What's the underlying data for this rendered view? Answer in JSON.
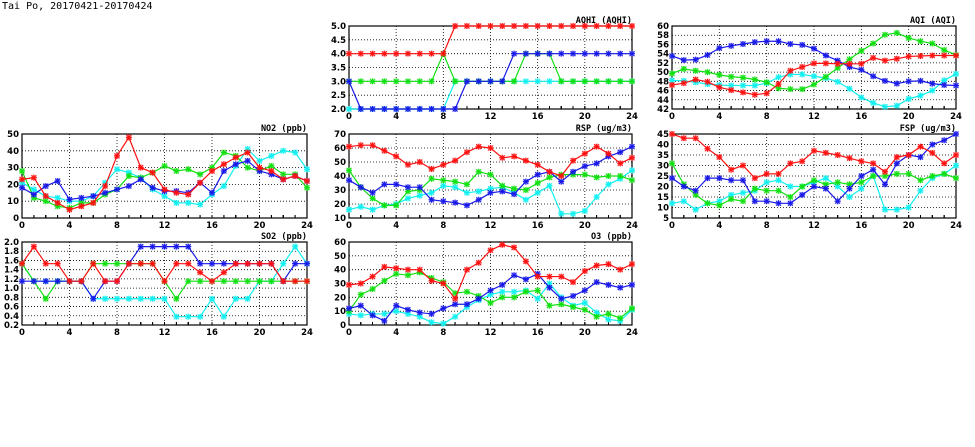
{
  "page_title": "Tai Po, 20170421-20170424",
  "colors": {
    "red": "#ff1010",
    "blue": "#1818e8",
    "green": "#10e010",
    "cyan": "#10f0f0"
  },
  "chart_data": [
    {
      "id": "no2",
      "type": "line",
      "title": "NO2 (ppb)",
      "xlabel": "",
      "ylabel": "",
      "xlim": [
        0,
        24
      ],
      "xticks": [
        "0",
        "4",
        "8",
        "12",
        "16",
        "20",
        "24"
      ],
      "ylim": [
        0,
        50
      ],
      "yticks": [
        "0",
        "10",
        "20",
        "30",
        "40",
        "50"
      ],
      "grid": true,
      "x": [
        0,
        1,
        2,
        3,
        4,
        5,
        6,
        7,
        8,
        9,
        10,
        11,
        12,
        13,
        14,
        15,
        16,
        17,
        18,
        19,
        20,
        21,
        22,
        23,
        24
      ],
      "series": [
        {
          "color": "cyan",
          "values": [
            21,
            17,
            13,
            12,
            10,
            10,
            13,
            21,
            29,
            27,
            24,
            17,
            13,
            9,
            9,
            8,
            14,
            19,
            31,
            41,
            34,
            37,
            40,
            39,
            29
          ]
        },
        {
          "color": "green",
          "values": [
            28,
            12,
            10,
            7,
            6,
            9,
            9,
            14,
            17,
            25,
            24,
            27,
            31,
            28,
            29,
            26,
            30,
            39,
            37,
            30,
            28,
            31,
            26,
            26,
            18
          ]
        },
        {
          "color": "blue",
          "values": [
            18,
            14,
            19,
            22,
            11,
            12,
            13,
            15,
            17,
            19,
            23,
            18,
            16,
            16,
            15,
            21,
            15,
            28,
            32,
            34,
            28,
            26,
            23,
            25,
            22
          ]
        },
        {
          "color": "red",
          "values": [
            23,
            24,
            13,
            9,
            5,
            7,
            9,
            19,
            37,
            48,
            30,
            27,
            17,
            15,
            14,
            21,
            28,
            32,
            36,
            39,
            30,
            28,
            23,
            25,
            22
          ]
        }
      ]
    },
    {
      "id": "so2",
      "type": "line",
      "title": "SO2 (ppb)",
      "xlabel": "",
      "ylabel": "",
      "xlim": [
        0,
        24
      ],
      "xticks": [
        "0",
        "4",
        "8",
        "12",
        "16",
        "20",
        "24"
      ],
      "ylim": [
        0.2,
        2.0
      ],
      "yticks": [
        "0.2",
        "0.4",
        "0.6",
        "0.8",
        "1.0",
        "1.2",
        "1.4",
        "1.6",
        "1.8",
        "2.0"
      ],
      "grid": true,
      "x": [
        0,
        1,
        2,
        3,
        4,
        5,
        6,
        7,
        8,
        9,
        10,
        11,
        12,
        13,
        14,
        15,
        16,
        17,
        18,
        19,
        20,
        21,
        22,
        23,
        24
      ],
      "series": [
        {
          "color": "cyan",
          "values": [
            1.53,
            1.15,
            1.15,
            1.15,
            1.15,
            1.15,
            0.77,
            0.77,
            0.77,
            0.77,
            0.77,
            0.77,
            0.77,
            0.38,
            0.38,
            0.38,
            0.77,
            0.38,
            0.77,
            0.77,
            1.15,
            1.15,
            1.53,
            1.9,
            1.53
          ]
        },
        {
          "color": "green",
          "values": [
            1.53,
            1.15,
            0.77,
            1.15,
            1.15,
            1.15,
            1.53,
            1.53,
            1.53,
            1.53,
            1.53,
            1.53,
            1.15,
            0.77,
            1.15,
            1.15,
            1.15,
            1.15,
            1.15,
            1.15,
            1.15,
            1.15,
            1.15,
            1.15,
            1.15
          ]
        },
        {
          "color": "blue",
          "values": [
            1.15,
            1.15,
            1.15,
            1.15,
            1.15,
            1.15,
            0.77,
            1.15,
            1.15,
            1.53,
            1.9,
            1.9,
            1.9,
            1.9,
            1.9,
            1.53,
            1.53,
            1.53,
            1.53,
            1.53,
            1.53,
            1.53,
            1.15,
            1.53,
            1.53
          ]
        },
        {
          "color": "red",
          "values": [
            1.53,
            1.9,
            1.53,
            1.53,
            1.15,
            1.15,
            1.53,
            1.15,
            1.15,
            1.53,
            1.53,
            1.53,
            1.15,
            1.53,
            1.53,
            1.34,
            1.15,
            1.34,
            1.53,
            1.53,
            1.53,
            1.53,
            1.15,
            1.15,
            1.15
          ]
        }
      ]
    },
    {
      "id": "aqhi",
      "type": "line",
      "title": "AQHI (AQHI)",
      "xlabel": "",
      "ylabel": "",
      "xlim": [
        0,
        24
      ],
      "xticks": [
        "0",
        "4",
        "8",
        "12",
        "16",
        "20",
        "24"
      ],
      "ylim": [
        2.0,
        5.0
      ],
      "yticks": [
        "2.0",
        "2.5",
        "3.0",
        "3.5",
        "4.0",
        "4.5",
        "5.0"
      ],
      "grid": true,
      "x": [
        0,
        1,
        2,
        3,
        4,
        5,
        6,
        7,
        8,
        9,
        10,
        11,
        12,
        13,
        14,
        15,
        16,
        17,
        18,
        19,
        20,
        21,
        22,
        23,
        24
      ],
      "series": [
        {
          "color": "cyan",
          "values": [
            2,
            2,
            2,
            2,
            2,
            2,
            2,
            2,
            2,
            3,
            3,
            3,
            3,
            3,
            3,
            3,
            3,
            3,
            3,
            3,
            3,
            3,
            3,
            3,
            3
          ]
        },
        {
          "color": "green",
          "values": [
            3,
            3,
            3,
            3,
            3,
            3,
            3,
            3,
            4,
            3,
            3,
            3,
            3,
            3,
            3,
            4,
            4,
            4,
            3,
            3,
            3,
            3,
            3,
            3,
            3
          ]
        },
        {
          "color": "blue",
          "values": [
            3,
            2,
            2,
            2,
            2,
            2,
            2,
            2,
            2,
            2,
            3,
            3,
            3,
            3,
            4,
            4,
            4,
            4,
            4,
            4,
            4,
            4,
            4,
            4,
            4
          ]
        },
        {
          "color": "red",
          "values": [
            4,
            4,
            4,
            4,
            4,
            4,
            4,
            4,
            4,
            5,
            5,
            5,
            5,
            5,
            5,
            5,
            5,
            5,
            5,
            5,
            5,
            5,
            5,
            5,
            5
          ]
        }
      ]
    },
    {
      "id": "rsp",
      "type": "line",
      "title": "RSP (ug/m3)",
      "xlabel": "",
      "ylabel": "",
      "xlim": [
        0,
        24
      ],
      "xticks": [
        "0",
        "4",
        "8",
        "12",
        "16",
        "20",
        "24"
      ],
      "ylim": [
        10,
        70
      ],
      "yticks": [
        "10",
        "20",
        "30",
        "40",
        "50",
        "60",
        "70"
      ],
      "grid": true,
      "x": [
        0,
        1,
        2,
        3,
        4,
        5,
        6,
        7,
        8,
        9,
        10,
        11,
        12,
        13,
        14,
        15,
        16,
        17,
        18,
        19,
        20,
        21,
        22,
        23,
        24
      ],
      "series": [
        {
          "color": "cyan",
          "values": [
            16,
            18,
            16,
            19,
            20,
            24,
            26,
            28,
            33,
            32,
            28,
            29,
            31,
            32,
            28,
            23,
            28,
            33,
            13,
            13,
            15,
            25,
            34,
            38,
            44
          ]
        },
        {
          "color": "green",
          "values": [
            44,
            32,
            24,
            19,
            19,
            29,
            30,
            38,
            37,
            36,
            34,
            43,
            41,
            33,
            31,
            30,
            35,
            39,
            41,
            41,
            41,
            39,
            40,
            40,
            37
          ]
        },
        {
          "color": "blue",
          "values": [
            37,
            32,
            28,
            34,
            34,
            32,
            32,
            23,
            22,
            21,
            19,
            23,
            28,
            29,
            27,
            36,
            41,
            43,
            36,
            43,
            47,
            49,
            54,
            57,
            61
          ]
        },
        {
          "color": "red",
          "values": [
            61,
            62,
            62,
            58,
            54,
            48,
            50,
            45,
            48,
            51,
            57,
            61,
            60,
            53,
            54,
            51,
            48,
            43,
            40,
            51,
            56,
            61,
            56,
            49,
            53
          ]
        }
      ]
    },
    {
      "id": "o3",
      "type": "line",
      "title": "O3 (ppb)",
      "xlabel": "",
      "ylabel": "",
      "xlim": [
        0,
        24
      ],
      "xticks": [
        "0",
        "4",
        "8",
        "12",
        "16",
        "20",
        "24"
      ],
      "ylim": [
        0,
        60
      ],
      "yticks": [
        "0",
        "10",
        "20",
        "30",
        "40",
        "50",
        "60"
      ],
      "grid": true,
      "x": [
        0,
        1,
        2,
        3,
        4,
        5,
        6,
        7,
        8,
        9,
        10,
        11,
        12,
        13,
        14,
        15,
        16,
        17,
        18,
        19,
        20,
        21,
        22,
        23,
        24
      ],
      "series": [
        {
          "color": "cyan",
          "values": [
            8,
            7,
            8,
            8,
            10,
            8,
            6,
            2,
            1,
            6,
            13,
            18,
            22,
            24,
            24,
            25,
            19,
            30,
            20,
            14,
            16,
            9,
            4,
            3,
            11
          ]
        },
        {
          "color": "green",
          "values": [
            10,
            22,
            26,
            32,
            37,
            36,
            38,
            34,
            31,
            23,
            24,
            21,
            16,
            20,
            20,
            24,
            25,
            14,
            15,
            13,
            11,
            6,
            8,
            5,
            12
          ]
        },
        {
          "color": "blue",
          "values": [
            12,
            14,
            7,
            3,
            14,
            11,
            9,
            8,
            12,
            15,
            15,
            19,
            25,
            29,
            36,
            33,
            37,
            27,
            19,
            21,
            25,
            31,
            29,
            27,
            29
          ]
        },
        {
          "color": "red",
          "values": [
            29,
            30,
            35,
            42,
            41,
            40,
            40,
            32,
            30,
            19,
            40,
            45,
            54,
            58,
            56,
            46,
            35,
            35,
            35,
            31,
            39,
            43,
            44,
            40,
            44
          ]
        }
      ]
    },
    {
      "id": "aqi",
      "type": "line",
      "title": "AQI (AQI)",
      "xlabel": "",
      "ylabel": "",
      "xlim": [
        0,
        24
      ],
      "xticks": [
        "0",
        "4",
        "8",
        "12",
        "16",
        "20",
        "24"
      ],
      "ylim": [
        42,
        60
      ],
      "yticks": [
        "42",
        "44",
        "46",
        "48",
        "50",
        "52",
        "54",
        "56",
        "58",
        "60"
      ],
      "grid": true,
      "x": [
        0,
        1,
        2,
        3,
        4,
        5,
        6,
        7,
        8,
        9,
        10,
        11,
        12,
        13,
        14,
        15,
        16,
        17,
        18,
        19,
        20,
        21,
        22,
        23,
        24
      ],
      "series": [
        {
          "color": "cyan",
          "values": [
            48.2,
            48.1,
            47.8,
            47.4,
            47.2,
            47.1,
            47.1,
            47.1,
            47.6,
            48.9,
            49.5,
            49.5,
            49.1,
            48.7,
            47.9,
            46.4,
            44.5,
            43.3,
            42.5,
            42.7,
            44.2,
            44.9,
            46,
            48.2,
            49.6
          ]
        },
        {
          "color": "green",
          "values": [
            49.7,
            50.7,
            50.3,
            50,
            49.4,
            49,
            48.8,
            48.4,
            47.8,
            46.5,
            46.3,
            46.3,
            47.3,
            49,
            50.9,
            52.8,
            54.6,
            56.2,
            58.1,
            58.5,
            57.4,
            56.7,
            56.2,
            54.8,
            53.7
          ]
        },
        {
          "color": "blue",
          "values": [
            53.5,
            52.6,
            52.7,
            53.7,
            55.2,
            55.7,
            56.1,
            56.5,
            56.7,
            56.7,
            56.1,
            55.9,
            55.1,
            53.6,
            52.5,
            51.1,
            50.5,
            49.1,
            48.1,
            47.5,
            48,
            48.1,
            47.5,
            47.2,
            47.1
          ]
        },
        {
          "color": "red",
          "values": [
            47.2,
            47.6,
            48.4,
            47.9,
            46.7,
            46.1,
            45.6,
            45.1,
            45.4,
            47.4,
            50.3,
            51.1,
            51.9,
            51.9,
            51.8,
            51.8,
            51.8,
            53.1,
            52.5,
            52.9,
            53.4,
            53.5,
            53.6,
            53.6,
            53.6
          ]
        }
      ]
    },
    {
      "id": "fsp",
      "type": "line",
      "title": "FSP (ug/m3)",
      "xlabel": "",
      "ylabel": "",
      "xlim": [
        0,
        24
      ],
      "xticks": [
        "0",
        "4",
        "8",
        "12",
        "16",
        "20",
        "24"
      ],
      "ylim": [
        5,
        45
      ],
      "yticks": [
        "5",
        "10",
        "15",
        "20",
        "25",
        "30",
        "35",
        "40",
        "45"
      ],
      "grid": true,
      "x": [
        0,
        1,
        2,
        3,
        4,
        5,
        6,
        7,
        8,
        9,
        10,
        11,
        12,
        13,
        14,
        15,
        16,
        17,
        18,
        19,
        20,
        21,
        22,
        23,
        24
      ],
      "series": [
        {
          "color": "cyan",
          "values": [
            12,
            13,
            9,
            12,
            13,
            16,
            17,
            18,
            22,
            23,
            20,
            20,
            22,
            24,
            20,
            15,
            19,
            25,
            9,
            9,
            10,
            18,
            24,
            26,
            30
          ]
        },
        {
          "color": "green",
          "values": [
            31,
            21,
            16,
            12,
            11,
            14,
            13,
            19,
            18,
            18,
            15,
            20,
            23,
            21,
            22,
            21,
            22,
            25,
            25,
            26,
            26,
            23,
            25,
            26,
            24
          ]
        },
        {
          "color": "blue",
          "values": [
            24,
            20,
            18,
            24,
            24,
            23,
            23,
            13,
            13,
            12,
            12,
            16,
            20,
            19,
            13,
            19,
            25,
            28,
            21,
            31,
            35,
            34,
            40,
            42,
            45
          ]
        },
        {
          "color": "red",
          "values": [
            45,
            43,
            43,
            38,
            34,
            28,
            30,
            24,
            26,
            26,
            31,
            32,
            37,
            36,
            35,
            33.5,
            32,
            31,
            27,
            34,
            35,
            39,
            36,
            31,
            35
          ]
        }
      ]
    }
  ]
}
